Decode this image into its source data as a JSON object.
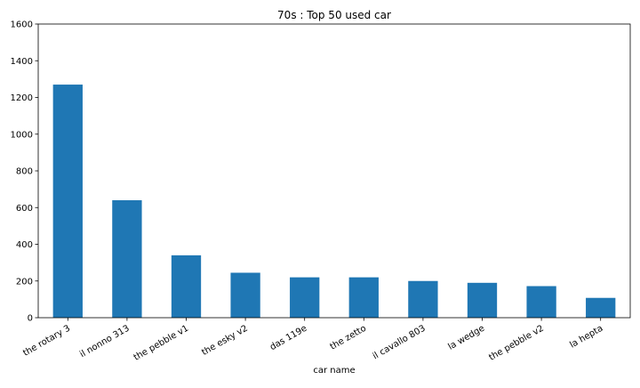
{
  "chart_data": {
    "type": "bar",
    "title": "70s : Top 50 used car",
    "xlabel": "car name",
    "ylabel": "",
    "categories": [
      "the rotary 3",
      "il nonno 313",
      "the pebble v1",
      "the esky v2",
      "das 119e",
      "the zetto",
      "il cavallo 803",
      "la wedge",
      "the pebble v2",
      "la hepta"
    ],
    "values": [
      1270,
      640,
      340,
      245,
      220,
      220,
      200,
      190,
      172,
      108
    ],
    "ylim": [
      0,
      1600
    ],
    "yticks": [
      0,
      200,
      400,
      600,
      800,
      1000,
      1200,
      1400,
      1600
    ],
    "bar_color": "#1f77b4",
    "grid": false,
    "legend": "none"
  }
}
